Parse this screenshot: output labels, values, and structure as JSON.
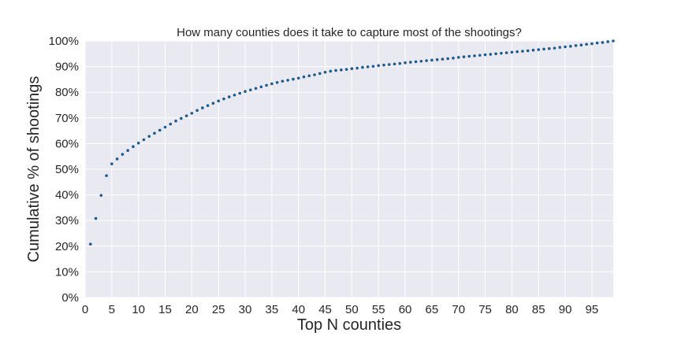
{
  "chart_data": {
    "type": "scatter",
    "title": "How many counties does it take to capture most of the shootings?",
    "xlabel": "Top N counties",
    "ylabel": "Cumulative % of shootings",
    "xlim": [
      0,
      99
    ],
    "ylim": [
      0,
      100
    ],
    "grid": true,
    "xticks": [
      0,
      5,
      10,
      15,
      20,
      25,
      30,
      35,
      40,
      45,
      50,
      55,
      60,
      65,
      70,
      75,
      80,
      85,
      90,
      95
    ],
    "xtick_labels": [
      "0",
      "5",
      "10",
      "15",
      "20",
      "25",
      "30",
      "35",
      "40",
      "45",
      "50",
      "55",
      "60",
      "65",
      "70",
      "75",
      "80",
      "85",
      "90",
      "95"
    ],
    "yticks": [
      0,
      10,
      20,
      30,
      40,
      50,
      60,
      70,
      80,
      90,
      100
    ],
    "ytick_labels": [
      "0%",
      "10%",
      "20%",
      "30%",
      "40%",
      "50%",
      "60%",
      "70%",
      "80%",
      "90%",
      "100%"
    ],
    "series": [
      {
        "color": "#1f5a8e",
        "x": [
          1,
          2,
          3,
          4,
          5,
          6,
          7,
          8,
          9,
          10,
          11,
          12,
          13,
          14,
          15,
          16,
          17,
          18,
          19,
          20,
          21,
          22,
          23,
          24,
          25,
          26,
          27,
          28,
          29,
          30,
          31,
          32,
          33,
          34,
          35,
          36,
          37,
          38,
          39,
          40,
          41,
          42,
          43,
          44,
          45,
          46,
          47,
          48,
          49,
          50,
          51,
          52,
          53,
          54,
          55,
          56,
          57,
          58,
          59,
          60,
          61,
          62,
          63,
          64,
          65,
          66,
          67,
          68,
          69,
          70,
          71,
          72,
          73,
          74,
          75,
          76,
          77,
          78,
          79,
          80,
          81,
          82,
          83,
          84,
          85,
          86,
          87,
          88,
          89,
          90,
          91,
          92,
          93,
          94,
          95,
          96,
          97,
          98,
          99
        ],
        "y": [
          20.8,
          30.8,
          39.8,
          47.5,
          52.1,
          54.0,
          55.8,
          57.3,
          58.8,
          60.2,
          61.5,
          62.8,
          64.0,
          65.2,
          66.4,
          67.6,
          68.8,
          69.8,
          70.8,
          71.8,
          72.9,
          73.9,
          74.8,
          75.7,
          76.6,
          77.4,
          78.2,
          78.9,
          79.6,
          80.3,
          80.9,
          81.5,
          82.1,
          82.7,
          83.3,
          83.8,
          84.3,
          84.7,
          85.1,
          85.5,
          86.0,
          86.4,
          86.8,
          87.3,
          87.8,
          88.2,
          88.5,
          88.7,
          88.9,
          89.2,
          89.4,
          89.7,
          89.9,
          90.1,
          90.4,
          90.6,
          90.8,
          91.0,
          91.2,
          91.5,
          91.7,
          91.9,
          92.1,
          92.3,
          92.5,
          92.7,
          92.9,
          93.1,
          93.3,
          93.6,
          93.8,
          94.0,
          94.2,
          94.4,
          94.6,
          94.8,
          95.0,
          95.2,
          95.4,
          95.6,
          95.8,
          96.0,
          96.2,
          96.4,
          96.6,
          96.8,
          97.0,
          97.2,
          97.5,
          97.7,
          97.9,
          98.2,
          98.4,
          98.7,
          98.9,
          99.2,
          99.4,
          99.7,
          100.0
        ]
      }
    ]
  }
}
